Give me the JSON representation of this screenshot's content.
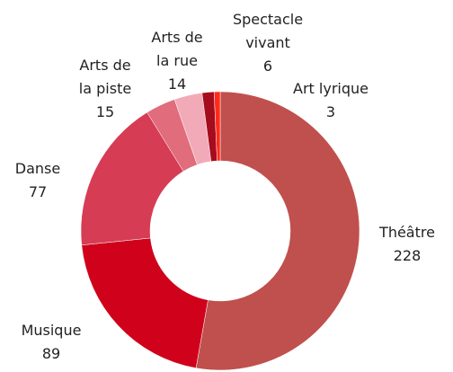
{
  "chart_data": {
    "type": "donut",
    "categories": [
      "Théâtre",
      "Musique",
      "Danse",
      "Arts de la piste",
      "Arts de la rue",
      "Spectacle vivant",
      "Art lyrique"
    ],
    "values": [
      228,
      89,
      77,
      15,
      14,
      6,
      3
    ],
    "colors": [
      "#c0504d",
      "#d0021b",
      "#d63c54",
      "#e06c7c",
      "#f2aab8",
      "#a50c1e",
      "#ff2a1a"
    ]
  }
}
